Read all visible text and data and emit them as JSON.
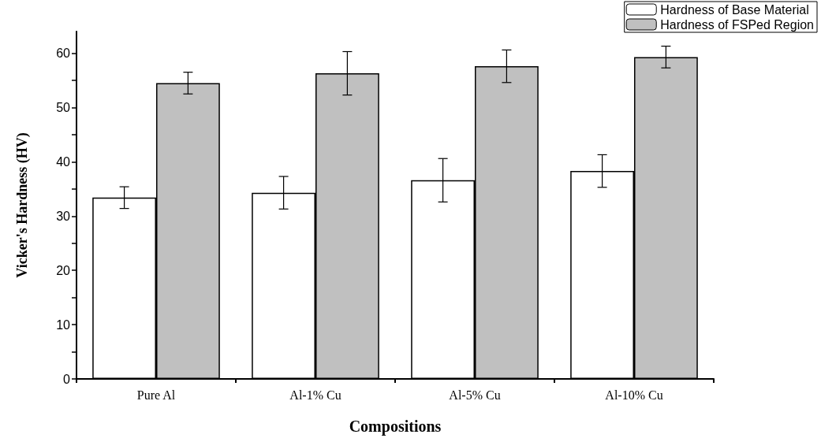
{
  "chart_data": {
    "type": "bar",
    "xlabel": "Compositions",
    "ylabel": "Vicker's Hardness (HV)",
    "categories": [
      "Pure Al",
      "Al-1% Cu",
      "Al-5% Cu",
      "Al-10% Cu"
    ],
    "series": [
      {
        "name": "Hardness of Base Material",
        "color": "#ffffff",
        "values": [
          33.4,
          34.3,
          36.6,
          38.3
        ],
        "errors": [
          2,
          3,
          4,
          3
        ]
      },
      {
        "name": "Hardness of FSPed Region",
        "color": "#c0c0c0",
        "values": [
          54.5,
          56.3,
          57.6,
          59.3
        ],
        "errors": [
          2,
          4,
          3,
          2
        ]
      }
    ],
    "ylim": [
      0,
      64
    ],
    "yticks": [
      0,
      {
        "value": 5,
        "label": null
      },
      10,
      {
        "value": 15,
        "label": null
      },
      20,
      {
        "value": 25,
        "label": null
      },
      30,
      {
        "value": 35,
        "label": null
      },
      40,
      {
        "value": 45,
        "label": null
      },
      50,
      {
        "value": 55,
        "label": null
      },
      60
    ],
    "grid": false,
    "legend": "top right"
  }
}
